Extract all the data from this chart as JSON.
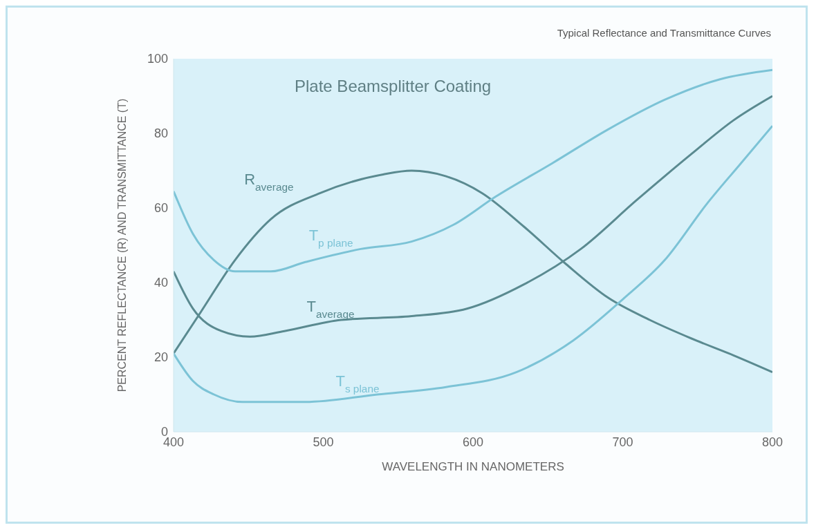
{
  "chart_data": {
    "type": "line",
    "title": "Typical Reflectance and Transmittance Curves",
    "annotations": [
      "Plate Beamsplitter Coating"
    ],
    "xlabel": "WAVELENGTH IN NANOMETERS",
    "ylabel": "PERCENT REFLECTANCE (R) AND TRANSMITTANCE (T)",
    "xlim": [
      400,
      800
    ],
    "xticks": [
      400,
      500,
      600,
      700,
      800
    ],
    "ylim": [
      0,
      100
    ],
    "yticks": [
      0,
      20,
      40,
      60,
      80,
      100
    ],
    "grid": false,
    "legend": false,
    "marker": "none",
    "line_style": "solid",
    "series": [
      {
        "name": "R$_{average}$",
        "color": "#5a8a90",
        "x": [
          400,
          418,
          441,
          465,
          498,
          540,
          559,
          582,
          606,
          634,
          662,
          690,
          718,
          746,
          774,
          800
        ],
        "values": [
          21,
          32,
          46,
          57,
          64,
          69,
          70,
          68.5,
          64,
          55,
          45,
          36,
          30,
          25,
          20.5,
          16
        ]
      },
      {
        "name": "T$_{p plane}$",
        "color": "#7cc3d6",
        "x": [
          400,
          413,
          427,
          441,
          465,
          488,
          525,
          559,
          587,
          615,
          653,
          690,
          728,
          765,
          800
        ],
        "values": [
          64.5,
          53,
          46,
          43,
          43,
          45.5,
          49,
          51,
          55.5,
          63,
          72,
          81,
          89,
          94.5,
          97
        ]
      },
      {
        "name": "T$_{average}$",
        "color": "#5a8a90",
        "x": [
          400,
          413,
          432,
          451,
          474,
          512,
          559,
          596,
          634,
          672,
          709,
          746,
          774,
          800
        ],
        "values": [
          43,
          33,
          27,
          25.5,
          27,
          30,
          31,
          33,
          39.5,
          49,
          62,
          74.5,
          83.5,
          90
        ]
      },
      {
        "name": "T$_{s plane}$",
        "color": "#7cc3d6",
        "x": [
          400,
          413,
          427,
          446,
          488,
          536,
          582,
          629,
          667,
          700,
          728,
          756,
          779,
          800
        ],
        "values": [
          21,
          13.6,
          10,
          8,
          8,
          10,
          12,
          16,
          24.5,
          35.5,
          46,
          61,
          72,
          82
        ]
      }
    ]
  }
}
